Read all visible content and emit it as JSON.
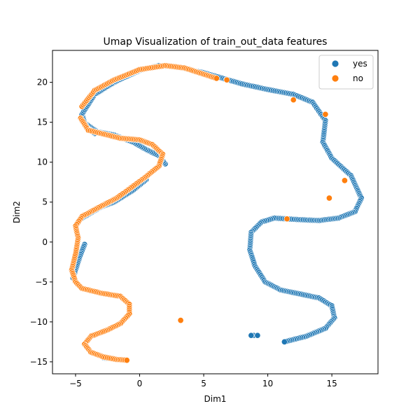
{
  "chart_data": {
    "type": "scatter",
    "title": "Umap Visualization of train_out_data features",
    "xlabel": "Dim1",
    "ylabel": "Dim2",
    "xlim": [
      -6.8,
      18.6
    ],
    "ylim": [
      -16.5,
      24.0
    ],
    "xticks": [
      -5,
      0,
      5,
      10,
      15
    ],
    "yticks": [
      -15,
      -10,
      -5,
      0,
      5,
      10,
      15,
      20
    ],
    "grid": false,
    "legend_position": "top-right",
    "colors": {
      "yes": "#1f77b4",
      "no": "#ff7f0e",
      "edge": "#ffffff",
      "frame": "#000000"
    },
    "series": [
      {
        "name": "yes",
        "curves": [
          [
            [
              1.5,
              22.1
            ],
            [
              3.0,
              21.9
            ],
            [
              5.0,
              21.2
            ],
            [
              6.5,
              20.5
            ],
            [
              8.0,
              19.8
            ],
            [
              10.0,
              19.1
            ],
            [
              12.0,
              18.5
            ],
            [
              13.5,
              17.5
            ],
            [
              14.5,
              15.2
            ],
            [
              14.3,
              12.5
            ],
            [
              15.0,
              10.5
            ],
            [
              16.5,
              8.3
            ],
            [
              17.3,
              5.5
            ],
            [
              16.8,
              3.8
            ],
            [
              15.5,
              3.0
            ],
            [
              14.0,
              2.7
            ],
            [
              12.5,
              2.8
            ],
            [
              10.5,
              3.0
            ],
            [
              9.5,
              2.5
            ],
            [
              8.7,
              1.2
            ],
            [
              8.6,
              -1.0
            ],
            [
              9.0,
              -3.0
            ],
            [
              9.8,
              -5.0
            ],
            [
              11.0,
              -6.0
            ],
            [
              12.5,
              -6.5
            ],
            [
              14.0,
              -7.0
            ],
            [
              15.0,
              -8.0
            ],
            [
              15.2,
              -9.5
            ],
            [
              14.5,
              -10.8
            ],
            [
              13.0,
              -11.8
            ],
            [
              11.3,
              -12.5
            ]
          ],
          [
            [
              2.0,
              9.8
            ],
            [
              1.5,
              10.8
            ],
            [
              0.5,
              11.6
            ],
            [
              -0.5,
              12.5
            ],
            [
              -2.0,
              13.4
            ],
            [
              -3.3,
              13.8
            ],
            [
              -4.2,
              14.8
            ]
          ],
          [
            [
              -3.5,
              13.6
            ],
            [
              -4.2,
              14.4
            ],
            [
              -4.5,
              16.0
            ],
            [
              -3.5,
              18.5
            ],
            [
              -2.0,
              20.0
            ],
            [
              0.0,
              21.5
            ],
            [
              1.5,
              22.1
            ]
          ],
          [
            [
              0.5,
              7.8
            ],
            [
              -0.5,
              6.5
            ],
            [
              -2.0,
              5.0
            ],
            [
              -3.0,
              4.4
            ],
            [
              -4.5,
              3.0
            ]
          ],
          [
            [
              -4.3,
              -0.3
            ],
            [
              -4.7,
              -2.0
            ],
            [
              -5.2,
              -4.5
            ]
          ],
          [
            [
              -2.8,
              -14.5
            ],
            [
              -2.3,
              -14.6
            ]
          ]
        ],
        "points": [
          [
            8.9,
            -11.7
          ],
          [
            9.2,
            -11.7
          ],
          [
            8.7,
            -11.7
          ]
        ]
      },
      {
        "name": "no",
        "curves": [
          [
            [
              -4.5,
              17.0
            ],
            [
              -3.5,
              19.0
            ],
            [
              -2.0,
              20.3
            ],
            [
              0.0,
              21.6
            ],
            [
              2.0,
              22.1
            ],
            [
              3.5,
              21.8
            ],
            [
              6.0,
              20.5
            ]
          ],
          [
            [
              -4.6,
              15.5
            ],
            [
              -4.0,
              14.0
            ],
            [
              -3.0,
              13.6
            ],
            [
              -1.5,
              13.0
            ],
            [
              0.0,
              12.8
            ],
            [
              1.0,
              12.2
            ],
            [
              1.8,
              11.0
            ],
            [
              1.5,
              9.5
            ],
            [
              0.5,
              8.2
            ],
            [
              -0.5,
              7.0
            ],
            [
              -1.8,
              5.5
            ],
            [
              -3.0,
              4.5
            ],
            [
              -4.5,
              3.2
            ],
            [
              -5.0,
              2.0
            ],
            [
              -4.8,
              0.5
            ],
            [
              -5.0,
              -1.5
            ],
            [
              -5.3,
              -3.5
            ],
            [
              -5.0,
              -5.0
            ],
            [
              -4.5,
              -5.8
            ],
            [
              -3.0,
              -6.4
            ],
            [
              -1.5,
              -6.8
            ],
            [
              -0.8,
              -7.8
            ],
            [
              -0.8,
              -9.0
            ],
            [
              -1.5,
              -10.2
            ],
            [
              -2.5,
              -11.0
            ],
            [
              -3.8,
              -11.8
            ],
            [
              -4.3,
              -12.8
            ],
            [
              -3.8,
              -13.8
            ],
            [
              -2.8,
              -14.4
            ],
            [
              -1.8,
              -14.7
            ],
            [
              -1.0,
              -14.8
            ]
          ]
        ],
        "points": [
          [
            3.2,
            -9.8
          ],
          [
            11.5,
            2.9
          ],
          [
            12.0,
            17.8
          ],
          [
            6.8,
            20.3
          ],
          [
            14.8,
            5.5
          ],
          [
            16.0,
            7.7
          ],
          [
            14.5,
            16.0
          ]
        ]
      }
    ]
  }
}
